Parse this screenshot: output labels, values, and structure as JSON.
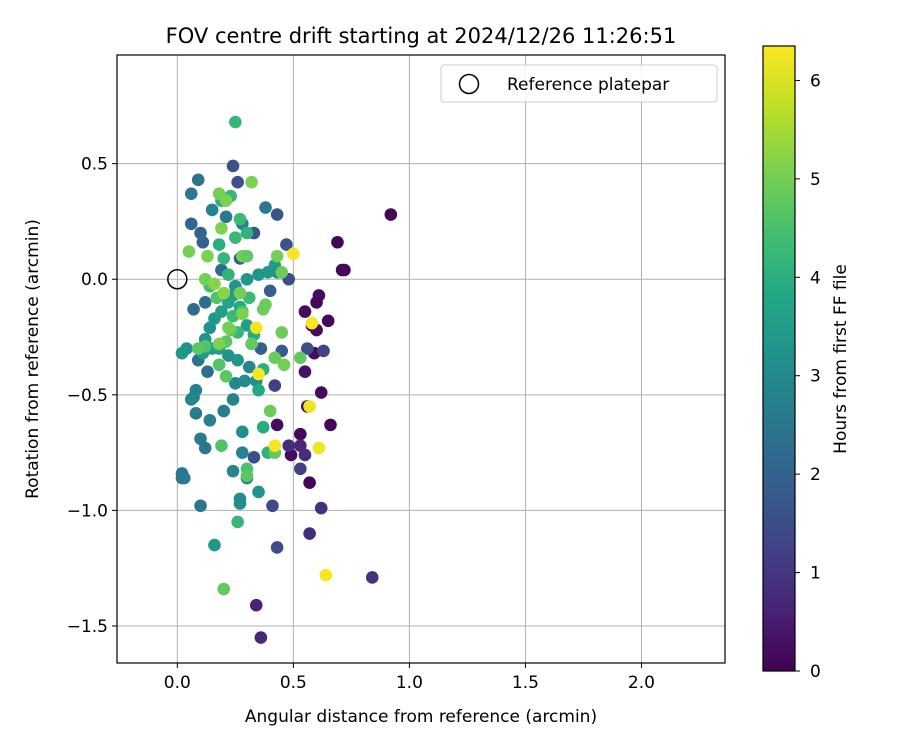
{
  "chart_data": {
    "type": "scatter",
    "title": "FOV centre drift starting at 2024/12/26 11:26:51",
    "xlabel": "Angular distance from reference (arcmin)",
    "ylabel": "Rotation from reference (arcmin)",
    "xlim": [
      -0.26,
      2.36
    ],
    "ylim": [
      -1.66,
      0.97
    ],
    "xticks": [
      0.0,
      0.5,
      1.0,
      1.5,
      2.0
    ],
    "xtick_labels": [
      "0.0",
      "0.5",
      "1.0",
      "1.5",
      "2.0"
    ],
    "yticks": [
      0.5,
      0.0,
      -0.5,
      -1.0,
      -1.5
    ],
    "ytick_labels": [
      "0.5",
      "0.0",
      "−0.5",
      "−1.0",
      "−1.5"
    ],
    "grid": true,
    "legend": {
      "placement": "top-right",
      "entries": [
        "Reference platepar"
      ]
    },
    "reference_point": {
      "x": 0.0,
      "y": 0.0
    },
    "colorbar": {
      "label": "Hours from first FF file",
      "colormap": "viridis",
      "range": [
        0,
        6.35
      ],
      "ticks": [
        0,
        1,
        2,
        3,
        4,
        5,
        6
      ],
      "tick_labels": [
        "0",
        "1",
        "2",
        "3",
        "4",
        "5",
        "6"
      ]
    },
    "points": [
      [
        0.92,
        0.28,
        0.05
      ],
      [
        0.69,
        0.16,
        0.1
      ],
      [
        0.71,
        0.04,
        0.1
      ],
      [
        0.72,
        0.04,
        0.12
      ],
      [
        0.61,
        -0.07,
        0.2
      ],
      [
        0.6,
        -0.1,
        0.15
      ],
      [
        0.65,
        -0.18,
        0.1
      ],
      [
        0.55,
        -0.14,
        0.2
      ],
      [
        0.58,
        -0.2,
        0.1
      ],
      [
        0.6,
        -0.22,
        0.2
      ],
      [
        0.59,
        -0.32,
        0.2
      ],
      [
        0.62,
        -0.49,
        0.2
      ],
      [
        0.56,
        -0.55,
        0.2
      ],
      [
        0.66,
        -0.63,
        0.1
      ],
      [
        0.53,
        -0.67,
        0.1
      ],
      [
        0.49,
        -0.76,
        0.2
      ],
      [
        0.57,
        -0.88,
        0.1
      ],
      [
        0.55,
        -0.4,
        0.3
      ],
      [
        0.43,
        -0.63,
        0.2
      ],
      [
        0.48,
        -0.72,
        0.8
      ],
      [
        0.53,
        -0.72,
        0.7
      ],
      [
        0.55,
        -0.76,
        0.8
      ],
      [
        0.62,
        -0.99,
        0.9
      ],
      [
        0.57,
        -1.1,
        0.8
      ],
      [
        0.84,
        -1.29,
        0.9
      ],
      [
        0.34,
        -1.41,
        0.6
      ],
      [
        0.36,
        -1.55,
        0.7
      ],
      [
        0.53,
        -0.82,
        1.2
      ],
      [
        0.63,
        -0.31,
        1.3
      ],
      [
        0.56,
        -0.3,
        1.5
      ],
      [
        0.42,
        -0.46,
        1.2
      ],
      [
        0.41,
        -0.98,
        1.4
      ],
      [
        0.43,
        -1.16,
        1.4
      ],
      [
        0.33,
        -0.77,
        1.5
      ],
      [
        0.48,
        0.0,
        1.5
      ],
      [
        0.47,
        0.15,
        1.6
      ],
      [
        0.43,
        0.28,
        1.7
      ],
      [
        0.24,
        0.49,
        1.6
      ],
      [
        0.26,
        0.42,
        1.6
      ],
      [
        0.33,
        0.2,
        1.7
      ],
      [
        0.27,
        0.09,
        1.8
      ],
      [
        0.4,
        -0.05,
        1.9
      ],
      [
        0.45,
        -0.31,
        1.8
      ],
      [
        0.36,
        -0.3,
        1.9
      ],
      [
        0.11,
        0.16,
        2.0
      ],
      [
        0.06,
        0.24,
        2.1
      ],
      [
        0.1,
        0.2,
        2.0
      ],
      [
        0.19,
        0.04,
        2.2
      ],
      [
        0.12,
        -0.1,
        2.3
      ],
      [
        0.07,
        -0.13,
        2.2
      ],
      [
        0.09,
        -0.35,
        2.4
      ],
      [
        0.13,
        -0.4,
        2.3
      ],
      [
        0.09,
        0.43,
        2.5
      ],
      [
        0.06,
        0.37,
        2.6
      ],
      [
        0.38,
        0.31,
        2.6
      ],
      [
        0.28,
        0.24,
        2.7
      ],
      [
        0.21,
        0.27,
        2.6
      ],
      [
        0.15,
        0.3,
        2.8
      ],
      [
        0.02,
        -0.86,
        2.5
      ],
      [
        0.03,
        -0.86,
        2.6
      ],
      [
        0.02,
        -0.84,
        2.6
      ],
      [
        0.1,
        -0.98,
        2.5
      ],
      [
        0.1,
        -0.69,
        2.6
      ],
      [
        0.12,
        -0.73,
        2.5
      ],
      [
        0.08,
        -0.58,
        2.6
      ],
      [
        0.07,
        -0.51,
        2.7
      ],
      [
        0.08,
        -0.48,
        2.8
      ],
      [
        0.06,
        -0.52,
        2.9
      ],
      [
        0.14,
        -0.61,
        2.8
      ],
      [
        0.2,
        -0.57,
        2.7
      ],
      [
        0.24,
        -0.52,
        2.8
      ],
      [
        0.25,
        -0.45,
        2.9
      ],
      [
        0.29,
        -0.44,
        3.0
      ],
      [
        0.31,
        -0.38,
        2.9
      ],
      [
        0.34,
        -0.44,
        3.1
      ],
      [
        0.28,
        -0.75,
        2.8
      ],
      [
        0.3,
        -0.86,
        2.8
      ],
      [
        0.24,
        -0.83,
        2.9
      ],
      [
        0.27,
        -0.95,
        3.0
      ],
      [
        0.27,
        -0.97,
        3.1
      ],
      [
        0.35,
        -0.92,
        3.2
      ],
      [
        0.16,
        -1.15,
        3.3
      ],
      [
        0.28,
        -0.66,
        3.1
      ],
      [
        0.22,
        -0.33,
        3.2
      ],
      [
        0.26,
        -0.35,
        3.3
      ],
      [
        0.25,
        -0.03,
        3.2
      ],
      [
        0.3,
        0.0,
        3.3
      ],
      [
        0.35,
        0.02,
        3.3
      ],
      [
        0.39,
        0.03,
        3.4
      ],
      [
        0.42,
        0.06,
        3.5
      ],
      [
        0.43,
        0.03,
        3.2
      ],
      [
        0.04,
        -0.3,
        3.2
      ],
      [
        0.02,
        -0.32,
        3.3
      ],
      [
        0.11,
        -0.32,
        3.4
      ],
      [
        0.15,
        -0.3,
        3.5
      ],
      [
        0.18,
        -0.3,
        3.6
      ],
      [
        0.12,
        -0.26,
        3.3
      ],
      [
        0.14,
        -0.21,
        3.2
      ],
      [
        0.16,
        -0.17,
        3.4
      ],
      [
        0.19,
        -0.14,
        3.6
      ],
      [
        0.22,
        -0.1,
        3.7
      ],
      [
        0.24,
        -0.07,
        3.5
      ],
      [
        0.27,
        -0.12,
        3.8
      ],
      [
        0.3,
        -0.2,
        3.6
      ],
      [
        0.33,
        -0.24,
        3.9
      ],
      [
        0.37,
        -0.39,
        4.0
      ],
      [
        0.35,
        -0.48,
        3.8
      ],
      [
        0.37,
        -0.64,
        3.9
      ],
      [
        0.39,
        -0.75,
        4.1
      ],
      [
        0.26,
        -1.05,
        4.2
      ],
      [
        0.3,
        -0.82,
        4.5
      ],
      [
        0.26,
        -0.23,
        4.2
      ],
      [
        0.24,
        -0.16,
        4.3
      ],
      [
        0.28,
        -0.14,
        4.4
      ],
      [
        0.31,
        -0.08,
        4.3
      ],
      [
        0.22,
        0.02,
        4.1
      ],
      [
        0.2,
        0.09,
        4.2
      ],
      [
        0.18,
        0.15,
        4.0
      ],
      [
        0.25,
        0.18,
        4.2
      ],
      [
        0.27,
        0.26,
        4.3
      ],
      [
        0.3,
        0.2,
        4.1
      ],
      [
        0.19,
        0.34,
        4.0
      ],
      [
        0.23,
        0.36,
        4.2
      ],
      [
        0.25,
        0.68,
        4.2
      ],
      [
        0.14,
        -0.03,
        4.4
      ],
      [
        0.17,
        -0.08,
        4.6
      ],
      [
        0.12,
        -0.29,
        4.6
      ],
      [
        0.09,
        -0.3,
        4.7
      ],
      [
        0.18,
        -0.37,
        4.6
      ],
      [
        0.21,
        -0.27,
        4.7
      ],
      [
        0.23,
        -0.22,
        4.8
      ],
      [
        0.19,
        -0.72,
        4.6
      ],
      [
        0.21,
        -0.42,
        4.7
      ],
      [
        0.2,
        -1.34,
        4.8
      ],
      [
        0.3,
        -0.85,
        4.7
      ],
      [
        0.4,
        -0.57,
        4.9
      ],
      [
        0.42,
        -0.75,
        4.8
      ],
      [
        0.32,
        -0.28,
        4.8
      ],
      [
        0.38,
        -0.11,
        4.9
      ],
      [
        0.37,
        -0.13,
        4.9
      ],
      [
        0.42,
        -0.34,
        4.9
      ],
      [
        0.45,
        -0.23,
        4.9
      ],
      [
        0.46,
        -0.37,
        5.0
      ],
      [
        0.53,
        -0.34,
        4.8
      ],
      [
        0.43,
        0.1,
        5.0
      ],
      [
        0.45,
        0.03,
        4.9
      ],
      [
        0.28,
        0.1,
        5.0
      ],
      [
        0.3,
        0.1,
        4.8
      ],
      [
        0.19,
        0.22,
        5.1
      ],
      [
        0.18,
        0.37,
        5.0
      ],
      [
        0.21,
        0.34,
        5.1
      ],
      [
        0.32,
        0.42,
        5.1
      ],
      [
        0.05,
        0.12,
        5.0
      ],
      [
        0.13,
        0.1,
        5.1
      ],
      [
        0.12,
        0.0,
        5.0
      ],
      [
        0.16,
        -0.02,
        5.2
      ],
      [
        0.2,
        -0.06,
        5.2
      ],
      [
        0.27,
        -0.06,
        5.0
      ],
      [
        0.28,
        -0.15,
        5.1
      ],
      [
        0.22,
        -0.21,
        5.0
      ],
      [
        0.18,
        -0.28,
        5.1
      ],
      [
        0.5,
        0.11,
        6.3
      ],
      [
        0.58,
        -0.19,
        6.3
      ],
      [
        0.57,
        -0.55,
        6.2
      ],
      [
        0.35,
        -0.41,
        6.3
      ],
      [
        0.34,
        -0.21,
        6.2
      ],
      [
        0.42,
        -0.72,
        6.3
      ],
      [
        0.61,
        -0.73,
        6.2
      ],
      [
        0.64,
        -1.28,
        6.3
      ]
    ]
  }
}
